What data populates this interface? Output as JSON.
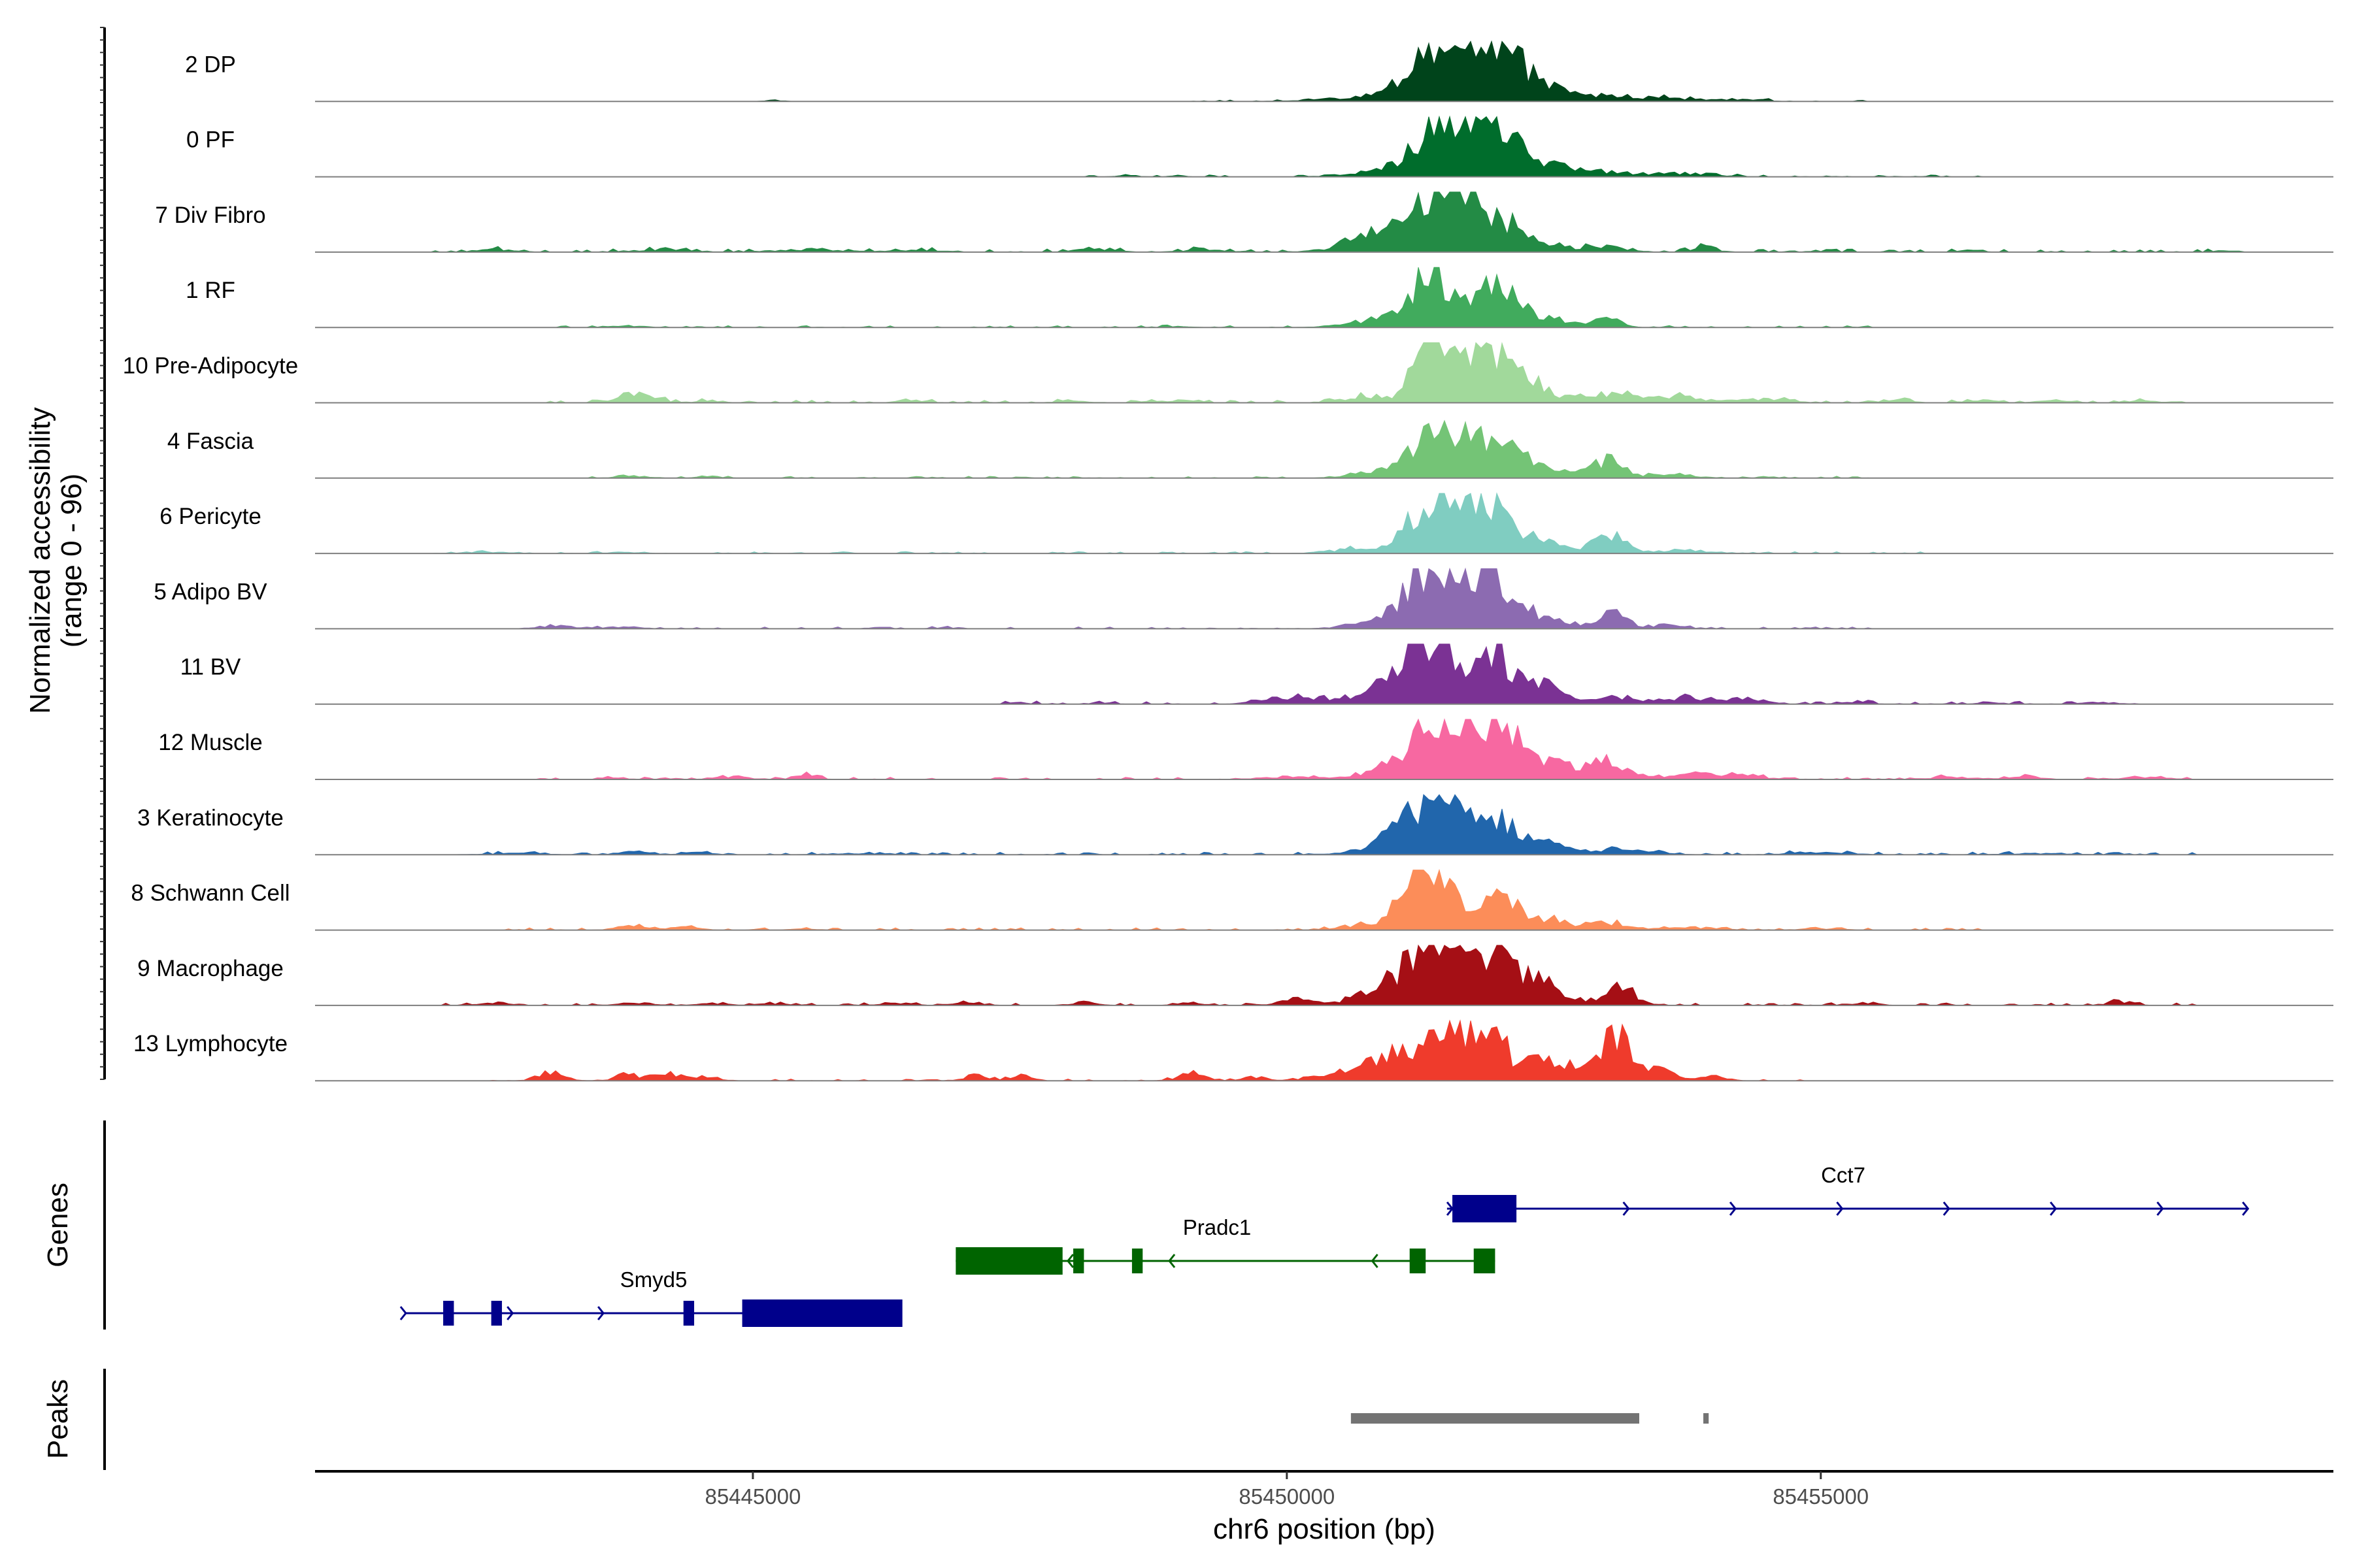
{
  "chart_data": {
    "type": "area",
    "title": "",
    "ylabel_line1": "Normalized accessibility",
    "ylabel_line2": "(range 0 - 96)",
    "y_range": [
      0,
      96
    ],
    "xlabel": "chr6 position (bp)",
    "xlim": [
      85440900,
      85459800
    ],
    "x_ticks": [
      85445000,
      85450000,
      85455000
    ],
    "x_tick_labels": [
      "85445000",
      "85450000",
      "85455000"
    ],
    "grid": false,
    "baseline_color": "#7f7f7f",
    "tracks": [
      {
        "label": "2 DP",
        "color": "#00441B",
        "peaks": [
          [
            85451450,
            90,
            260
          ],
          [
            85451950,
            80,
            200
          ],
          [
            85452300,
            25,
            250
          ],
          [
            85450800,
            8,
            400
          ],
          [
            85452900,
            6,
            300
          ],
          [
            85453600,
            5,
            300
          ],
          [
            85453050,
            5,
            150
          ],
          [
            85454300,
            4,
            150
          ],
          [
            85445200,
            2,
            80
          ]
        ],
        "noise": 1.5,
        "spread": [
          85449000,
          85455500
        ]
      },
      {
        "label": "0 PF",
        "color": "#006D2C",
        "peaks": [
          [
            85451450,
            86,
            240
          ],
          [
            85451950,
            76,
            180
          ],
          [
            85452300,
            25,
            250
          ],
          [
            85450900,
            8,
            300
          ],
          [
            85452900,
            8,
            300
          ],
          [
            85453700,
            5,
            300
          ],
          [
            85448500,
            2,
            100
          ]
        ],
        "noise": 1.5,
        "spread": [
          85448000,
          85456500
        ]
      },
      {
        "label": "7 Div Fibro",
        "color": "#238B45",
        "peaks": [
          [
            85451500,
            96,
            240
          ],
          [
            85450950,
            40,
            300
          ],
          [
            85451950,
            48,
            230
          ],
          [
            85452400,
            12,
            200
          ],
          [
            85453000,
            8,
            200
          ],
          [
            85453900,
            8,
            120
          ],
          [
            85442600,
            4,
            180
          ],
          [
            85444200,
            4,
            250
          ],
          [
            85445500,
            4,
            300
          ],
          [
            85446500,
            3,
            250
          ],
          [
            85448200,
            4,
            200
          ],
          [
            85449200,
            3,
            200
          ],
          [
            85456400,
            3,
            100
          ],
          [
            85458800,
            3,
            80
          ]
        ],
        "noise": 2.5,
        "spread": [
          85442000,
          85459000
        ]
      },
      {
        "label": "1 RF",
        "color": "#41AB5D",
        "peaks": [
          [
            85451350,
            80,
            220
          ],
          [
            85451950,
            62,
            180
          ],
          [
            85452400,
            18,
            220
          ],
          [
            85453000,
            12,
            120
          ],
          [
            85450800,
            10,
            250
          ],
          [
            85443800,
            3,
            150
          ],
          [
            85449000,
            2,
            100
          ]
        ],
        "noise": 1.5,
        "spread": [
          85443000,
          85455500
        ]
      },
      {
        "label": "10 Pre-Adipocyte",
        "color": "#A1D99B",
        "peaks": [
          [
            85451300,
            94,
            120
          ],
          [
            85451600,
            70,
            160
          ],
          [
            85451900,
            78,
            140
          ],
          [
            85452200,
            40,
            180
          ],
          [
            85452900,
            12,
            300
          ],
          [
            85453600,
            10,
            300
          ],
          [
            85450800,
            10,
            250
          ],
          [
            85443900,
            14,
            180
          ],
          [
            85444600,
            4,
            100
          ],
          [
            85454500,
            6,
            200
          ],
          [
            85446500,
            3,
            150
          ],
          [
            85448000,
            3,
            150
          ],
          [
            85448800,
            3,
            150
          ],
          [
            85455700,
            4,
            150
          ],
          [
            85456500,
            4,
            150
          ],
          [
            85457200,
            4,
            150
          ],
          [
            85458000,
            3,
            150
          ]
        ],
        "noise": 2.2,
        "spread": [
          85443000,
          85458600
        ]
      },
      {
        "label": "4 Fascia",
        "color": "#74C476",
        "peaks": [
          [
            85451450,
            80,
            220
          ],
          [
            85451950,
            62,
            180
          ],
          [
            85452350,
            20,
            200
          ],
          [
            85453000,
            28,
            150
          ],
          [
            85450900,
            10,
            250
          ],
          [
            85453600,
            6,
            200
          ],
          [
            85443900,
            3,
            150
          ],
          [
            85444600,
            3,
            100
          ]
        ],
        "noise": 1.5,
        "spread": [
          85443000,
          85455500
        ]
      },
      {
        "label": "6 Pericyte",
        "color": "#80CDC1",
        "peaks": [
          [
            85451300,
            78,
            180
          ],
          [
            85451600,
            55,
            160
          ],
          [
            85451950,
            80,
            150
          ],
          [
            85452300,
            25,
            200
          ],
          [
            85453000,
            30,
            150
          ],
          [
            85450700,
            8,
            250
          ],
          [
            85453700,
            5,
            250
          ],
          [
            85442500,
            2,
            200
          ],
          [
            85443800,
            2,
            150
          ]
        ],
        "noise": 1.5,
        "spread": [
          85442000,
          85456000
        ]
      },
      {
        "label": "5 Adipo BV",
        "color": "#8C6BB1",
        "peaks": [
          [
            85451400,
            96,
            250
          ],
          [
            85451950,
            74,
            180
          ],
          [
            85452400,
            20,
            220
          ],
          [
            85453050,
            24,
            120
          ],
          [
            85450900,
            15,
            250
          ],
          [
            85453500,
            5,
            200
          ],
          [
            85443200,
            4,
            200
          ],
          [
            85443800,
            3,
            150
          ],
          [
            85446800,
            2,
            100
          ]
        ],
        "noise": 1.5,
        "spread": [
          85443000,
          85455500
        ]
      },
      {
        "label": "11 BV",
        "color": "#7B3294",
        "peaks": [
          [
            85451400,
            96,
            200
          ],
          [
            85451950,
            92,
            150
          ],
          [
            85452400,
            30,
            150
          ],
          [
            85451050,
            35,
            180
          ],
          [
            85450750,
            15,
            150
          ],
          [
            85453100,
            10,
            300
          ],
          [
            85453800,
            10,
            150
          ],
          [
            85454300,
            10,
            150
          ],
          [
            85450200,
            10,
            200
          ],
          [
            85449800,
            6,
            150
          ],
          [
            85447500,
            2,
            100
          ],
          [
            85448300,
            2,
            100
          ],
          [
            85455300,
            3,
            150
          ],
          [
            85456600,
            3,
            100
          ],
          [
            85457600,
            3,
            150
          ]
        ],
        "noise": 2.2,
        "spread": [
          85447000,
          85458000
        ]
      },
      {
        "label": "12 Muscle",
        "color": "#F768A1",
        "peaks": [
          [
            85451400,
            92,
            240
          ],
          [
            85451950,
            80,
            180
          ],
          [
            85452350,
            30,
            200
          ],
          [
            85453000,
            22,
            150
          ],
          [
            85450850,
            12,
            250
          ],
          [
            85452800,
            10,
            300
          ],
          [
            85453800,
            8,
            300
          ],
          [
            85454300,
            6,
            150
          ],
          [
            85445500,
            9,
            100
          ],
          [
            85443700,
            3,
            120
          ],
          [
            85444800,
            4,
            150
          ],
          [
            85450000,
            4,
            250
          ],
          [
            85456200,
            4,
            200
          ],
          [
            85456900,
            6,
            150
          ],
          [
            85458000,
            3,
            250
          ]
        ],
        "noise": 1.8,
        "spread": [
          85443000,
          85459000
        ]
      },
      {
        "label": "3 Keratinocyte",
        "color": "#2166AC",
        "peaks": [
          [
            85451500,
            90,
            220
          ],
          [
            85451100,
            30,
            200
          ],
          [
            85452000,
            50,
            200
          ],
          [
            85452400,
            14,
            200
          ],
          [
            85450900,
            8,
            300
          ],
          [
            85453100,
            7,
            300
          ],
          [
            85443900,
            5,
            150
          ],
          [
            85444500,
            4,
            120
          ],
          [
            85442800,
            2,
            300
          ],
          [
            85446000,
            2,
            300
          ],
          [
            85455000,
            3,
            300
          ],
          [
            85457000,
            2,
            300
          ]
        ],
        "noise": 2.0,
        "spread": [
          85442500,
          85458500
        ]
      },
      {
        "label": "8 Schwann Cell",
        "color": "#FC8D59",
        "peaks": [
          [
            85451450,
            96,
            140
          ],
          [
            85451200,
            70,
            150
          ],
          [
            85451950,
            55,
            180
          ],
          [
            85452400,
            18,
            200
          ],
          [
            85453000,
            12,
            200
          ],
          [
            85450800,
            10,
            250
          ],
          [
            85443900,
            7,
            150
          ],
          [
            85444400,
            4,
            120
          ],
          [
            85445500,
            2,
            150
          ],
          [
            85453800,
            4,
            250
          ],
          [
            85455000,
            2,
            200
          ]
        ],
        "noise": 1.8,
        "spread": [
          85442500,
          85456500
        ]
      },
      {
        "label": "9 Macrophage",
        "color": "#A50F15",
        "peaks": [
          [
            85451350,
            96,
            250
          ],
          [
            85451950,
            74,
            200
          ],
          [
            85452400,
            30,
            150
          ],
          [
            85453150,
            28,
            120
          ],
          [
            85450800,
            20,
            200
          ],
          [
            85450100,
            10,
            150
          ],
          [
            85452800,
            8,
            200
          ],
          [
            85448100,
            5,
            120
          ],
          [
            85443900,
            4,
            150
          ],
          [
            85445200,
            3,
            150
          ],
          [
            85446300,
            3,
            150
          ],
          [
            85447000,
            3,
            150
          ],
          [
            85449100,
            4,
            120
          ],
          [
            85452000,
            2,
            200
          ],
          [
            85455400,
            3,
            150
          ],
          [
            85457800,
            6,
            120
          ],
          [
            85442500,
            3,
            120
          ],
          [
            85444600,
            3,
            120
          ]
        ],
        "noise": 2.0,
        "spread": [
          85442000,
          85458500
        ]
      },
      {
        "label": "13 Lymphocyte",
        "color": "#EF3B2C",
        "peaks": [
          [
            85451500,
            96,
            160
          ],
          [
            85451100,
            40,
            180
          ],
          [
            85450800,
            18,
            200
          ],
          [
            85451900,
            94,
            130
          ],
          [
            85452350,
            30,
            180
          ],
          [
            85453100,
            64,
            140
          ],
          [
            85452800,
            25,
            200
          ],
          [
            85453500,
            15,
            150
          ],
          [
            85450400,
            10,
            200
          ],
          [
            85443100,
            12,
            120
          ],
          [
            85443800,
            10,
            100
          ],
          [
            85444200,
            12,
            130
          ],
          [
            85444600,
            6,
            100
          ],
          [
            85447100,
            8,
            100
          ],
          [
            85447500,
            7,
            100
          ],
          [
            85449100,
            10,
            120
          ],
          [
            85449700,
            6,
            100
          ],
          [
            85454000,
            8,
            120
          ]
        ],
        "noise": 1.5,
        "spread": [
          85442500,
          85455000
        ]
      }
    ],
    "genes_panel": {
      "title": "Genes",
      "genes": [
        {
          "name": "Cct7",
          "strand": "+",
          "color": "#00008B",
          "row": 0,
          "start": 85451500,
          "end": 85459000,
          "exons": [
            [
              85451550,
              85452150,
              "thick"
            ]
          ],
          "arrows": [
            85451550,
            85453200,
            85454200,
            85455200,
            85456200,
            85457200,
            85458200,
            85459000
          ]
        },
        {
          "name": "Pradc1",
          "strand": "-",
          "color": "#006400",
          "row": 1,
          "start": 85446900,
          "end": 85451950,
          "exons": [
            [
              85446900,
              85447900,
              "thick"
            ],
            [
              85448000,
              85448100,
              "thin"
            ],
            [
              85448550,
              85448650,
              "thin"
            ],
            [
              85451150,
              85451300,
              "thin"
            ],
            [
              85451750,
              85451950,
              "thin"
            ]
          ],
          "arrows": [
            85447950,
            85448900,
            85450800
          ]
        },
        {
          "name": "Smyd5",
          "strand": "+",
          "color": "#00008B",
          "row": 2,
          "start": 85441750,
          "end": 85446350,
          "exons": [
            [
              85442100,
              85442200,
              "thin"
            ],
            [
              85442550,
              85442650,
              "thin"
            ],
            [
              85444350,
              85444450,
              "thin"
            ],
            [
              85444900,
              85446400,
              "thick"
            ]
          ],
          "arrows": [
            85441750,
            85442750,
            85443600,
            85446350
          ]
        }
      ]
    },
    "peaks_panel": {
      "title": "Peaks",
      "color": "#737373",
      "regions": [
        [
          85450600,
          85453300
        ],
        [
          85453900,
          85453950
        ]
      ]
    }
  }
}
